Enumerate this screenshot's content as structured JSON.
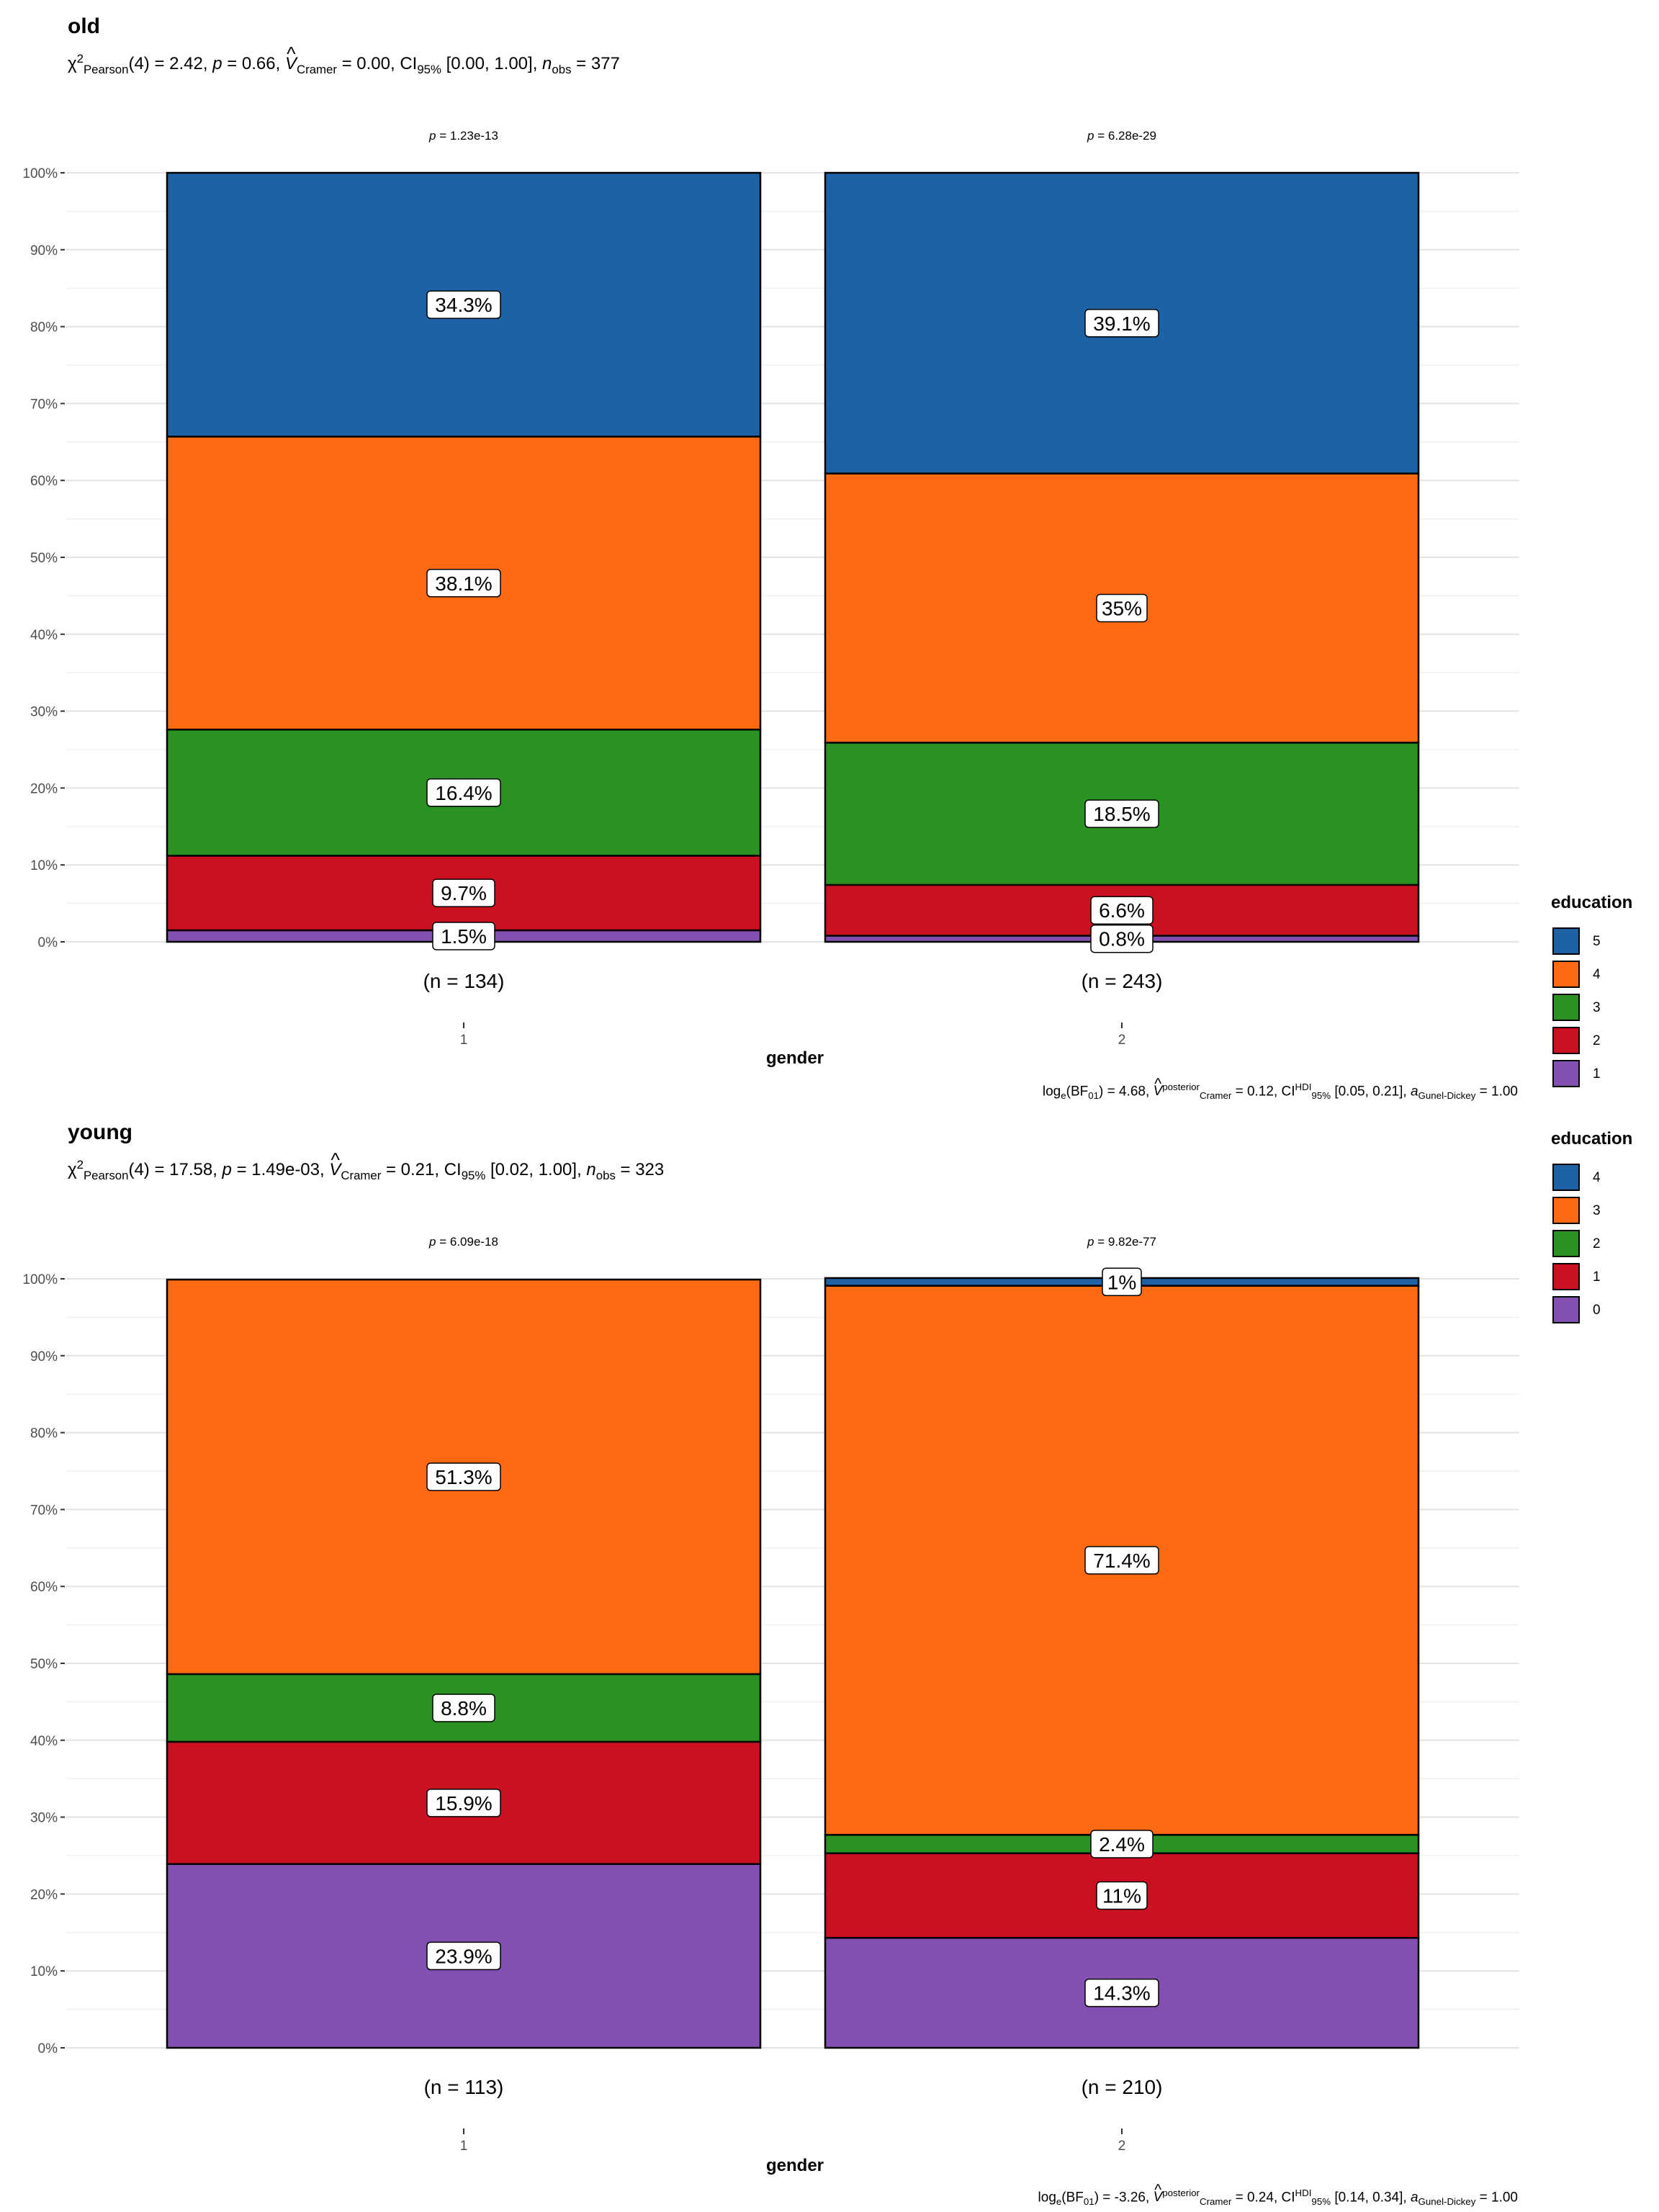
{
  "chart_data": [
    {
      "type": "bar",
      "stacked": "percent",
      "title": "old",
      "subtitle": {
        "chi_sq": "χ",
        "chi_sup": "2",
        "chi_sub": "Pearson",
        "df": "(4) = 2.42, ",
        "p_label": "p",
        "p_rest": " = 0.66, ",
        "v_label": "V",
        "v_sub": "Cramer",
        "v_rest": " = 0.00, CI",
        "ci_sub": "95%",
        "ci_rest": " [0.00, 1.00], ",
        "n_label": "n",
        "n_sub": "obs",
        "n_rest": " = 377"
      },
      "xlabel": "gender",
      "categories": [
        "1",
        "2"
      ],
      "category_counts": [
        "(n = 134)",
        "(n = 243)"
      ],
      "top_pvalues": [
        "= 1.23e-13",
        "= 6.28e-29"
      ],
      "ylim": [
        0,
        100
      ],
      "yticks": [
        "0%",
        "10%",
        "20%",
        "30%",
        "40%",
        "50%",
        "60%",
        "70%",
        "80%",
        "90%",
        "100%"
      ],
      "legend_title": "education",
      "series": [
        {
          "name": "1",
          "color": "#8350b1",
          "values": [
            1.5,
            0.8
          ],
          "labels": [
            "1.5%",
            "0.8%"
          ]
        },
        {
          "name": "2",
          "color": "#cb1121",
          "values": [
            9.7,
            6.6
          ],
          "labels": [
            "9.7%",
            "6.6%"
          ]
        },
        {
          "name": "3",
          "color": "#2a9222",
          "values": [
            16.4,
            18.5
          ],
          "labels": [
            "16.4%",
            "18.5%"
          ]
        },
        {
          "name": "4",
          "color": "#fd6a11",
          "values": [
            38.1,
            35
          ],
          "labels": [
            "38.1%",
            "35%"
          ]
        },
        {
          "name": "5",
          "color": "#1e62a6",
          "values": [
            34.3,
            39.1
          ],
          "labels": [
            "34.3%",
            "39.1%"
          ]
        }
      ],
      "legend_order": [
        "5",
        "4",
        "3",
        "2",
        "1"
      ],
      "caption": {
        "a": "log",
        "b": "e",
        "c": "(BF",
        "d": "01",
        "e": ") = 4.68, ",
        "f": "V",
        "g": "posterior",
        "h": "Cramer",
        "i": " = 0.12, CI",
        "j": "HDI",
        "k": "95%",
        "l": " [0.05, 0.21], ",
        "m": "a",
        "n": "Gunel-Dickey",
        "o": " = 1.00"
      }
    },
    {
      "type": "bar",
      "stacked": "percent",
      "title": "young",
      "subtitle": {
        "chi_sq": "χ",
        "chi_sup": "2",
        "chi_sub": "Pearson",
        "df": "(4) = 17.58, ",
        "p_label": "p",
        "p_rest": " = 1.49e-03, ",
        "v_label": "V",
        "v_sub": "Cramer",
        "v_rest": " = 0.21, CI",
        "ci_sub": "95%",
        "ci_rest": " [0.02, 1.00], ",
        "n_label": "n",
        "n_sub": "obs",
        "n_rest": " = 323"
      },
      "xlabel": "gender",
      "categories": [
        "1",
        "2"
      ],
      "category_counts": [
        "(n = 113)",
        "(n = 210)"
      ],
      "top_pvalues": [
        "= 6.09e-18",
        "= 9.82e-77"
      ],
      "ylim": [
        0,
        100
      ],
      "yticks": [
        "0%",
        "10%",
        "20%",
        "30%",
        "40%",
        "50%",
        "60%",
        "70%",
        "80%",
        "90%",
        "100%"
      ],
      "legend_title": "education",
      "series": [
        {
          "name": "0",
          "color": "#8350b1",
          "values": [
            23.9,
            14.3
          ],
          "labels": [
            "23.9%",
            "14.3%"
          ]
        },
        {
          "name": "1",
          "color": "#cb1121",
          "values": [
            15.9,
            11
          ],
          "labels": [
            "15.9%",
            "11%"
          ]
        },
        {
          "name": "2",
          "color": "#2a9222",
          "values": [
            8.8,
            2.4
          ],
          "labels": [
            "8.8%",
            "2.4%"
          ]
        },
        {
          "name": "3",
          "color": "#fd6a11",
          "values": [
            51.3,
            71.4
          ],
          "labels": [
            "51.3%",
            "71.4%"
          ]
        },
        {
          "name": "4",
          "color": "#1e62a6",
          "values": [
            0,
            1
          ],
          "labels": [
            "",
            "1%"
          ]
        }
      ],
      "legend_order": [
        "4",
        "3",
        "2",
        "1",
        "0"
      ],
      "caption": {
        "a": "log",
        "b": "e",
        "c": "(BF",
        "d": "01",
        "e": ") = -3.26, ",
        "f": "V",
        "g": "posterior",
        "h": "Cramer",
        "i": " = 0.24, CI",
        "j": "HDI",
        "k": "95%",
        "l": " [0.14, 0.34], ",
        "m": "a",
        "n": "Gunel-Dickey",
        "o": " = 1.00"
      }
    }
  ],
  "p_symbol": "p"
}
